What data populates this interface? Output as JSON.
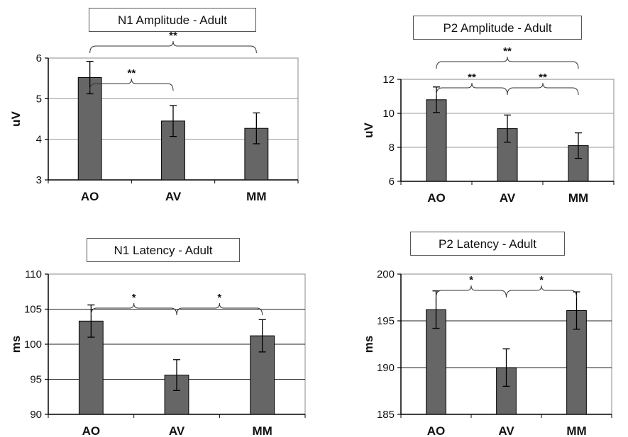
{
  "chart_data": [
    {
      "type": "bar",
      "title": "N1 Amplitude - Adult",
      "ylabel": "uV",
      "categories": [
        "AO",
        "AV",
        "MM"
      ],
      "values": [
        5.52,
        4.45,
        4.27
      ],
      "errors": [
        0.4,
        0.38,
        0.38
      ],
      "ylim": [
        3,
        6
      ],
      "yticks": [
        "3",
        "4",
        "5",
        "6"
      ],
      "ytick_values": [
        3,
        4,
        5,
        6
      ],
      "grid": true,
      "bar_color": "#666666",
      "significance": [
        {
          "from": 0,
          "to": 1,
          "label": "**"
        },
        {
          "from": 0,
          "to": 2,
          "label": "**"
        }
      ]
    },
    {
      "type": "bar",
      "title": "P2 Amplitude - Adult",
      "ylabel": "uV",
      "categories": [
        "AO",
        "AV",
        "MM"
      ],
      "values": [
        10.8,
        9.1,
        8.1
      ],
      "errors": [
        0.75,
        0.8,
        0.75
      ],
      "ylim": [
        6,
        12
      ],
      "yticks": [
        "6",
        "8",
        "10",
        "12"
      ],
      "ytick_values": [
        6,
        8,
        10,
        12
      ],
      "grid": true,
      "bar_color": "#666666",
      "significance": [
        {
          "from": 0,
          "to": 1,
          "label": "**"
        },
        {
          "from": 1,
          "to": 2,
          "label": "**"
        },
        {
          "from": 0,
          "to": 2,
          "label": "**"
        }
      ]
    },
    {
      "type": "bar",
      "title": "N1 Latency - Adult",
      "ylabel": "ms",
      "categories": [
        "AO",
        "AV",
        "MM"
      ],
      "values": [
        103.3,
        95.6,
        101.2
      ],
      "errors": [
        2.3,
        2.2,
        2.3
      ],
      "ylim": [
        90,
        110
      ],
      "yticks": [
        "90",
        "95",
        "100",
        "105",
        "110"
      ],
      "ytick_values": [
        90,
        95,
        100,
        105,
        110
      ],
      "grid": true,
      "bar_color": "#666666",
      "significance": [
        {
          "from": 0,
          "to": 1,
          "label": "*"
        },
        {
          "from": 1,
          "to": 2,
          "label": "*"
        }
      ]
    },
    {
      "type": "bar",
      "title": "P2 Latency - Adult",
      "ylabel": "ms",
      "categories": [
        "AO",
        "AV",
        "MM"
      ],
      "values": [
        196.2,
        190.0,
        196.1
      ],
      "errors": [
        2.0,
        2.0,
        2.0
      ],
      "ylim": [
        185,
        200
      ],
      "yticks": [
        "185",
        "190",
        "195",
        "200"
      ],
      "ytick_values": [
        185,
        190,
        195,
        200
      ],
      "grid": true,
      "bar_color": "#666666",
      "significance": [
        {
          "from": 0,
          "to": 1,
          "label": "*"
        },
        {
          "from": 1,
          "to": 2,
          "label": "*"
        }
      ]
    }
  ]
}
